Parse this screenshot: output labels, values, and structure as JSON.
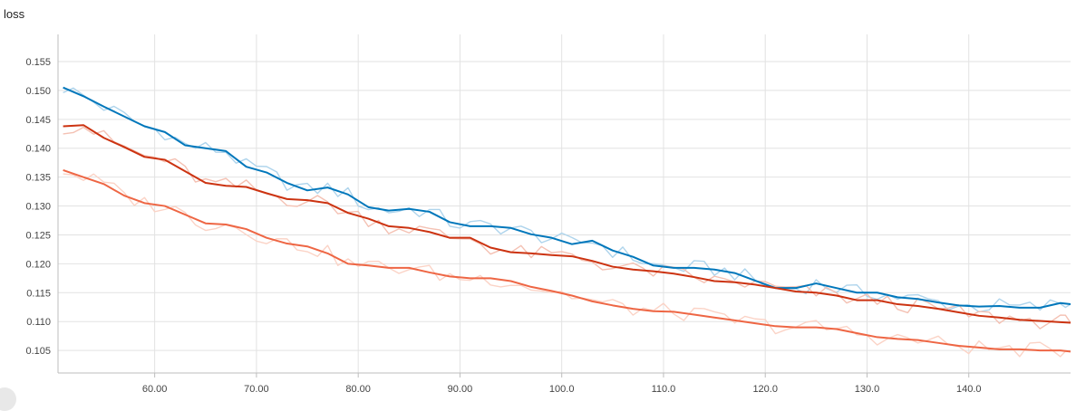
{
  "chart_data": {
    "type": "line",
    "title": "loss",
    "xlim": [
      50.5,
      150
    ],
    "ylim": [
      0.1011,
      0.1597
    ],
    "grid": true,
    "x_ticks": [
      60,
      70,
      80,
      90,
      100,
      110,
      120,
      130,
      140
    ],
    "x_tick_labels": [
      "60.00",
      "70.00",
      "80.00",
      "90.00",
      "100.0",
      "110.0",
      "120.0",
      "130.0",
      "140.0"
    ],
    "y_ticks": [
      0.105,
      0.11,
      0.115,
      0.12,
      0.125,
      0.13,
      0.135,
      0.14,
      0.145,
      0.15,
      0.155
    ],
    "y_tick_labels": [
      "0.105",
      "0.110",
      "0.115",
      "0.120",
      "0.125",
      "0.130",
      "0.135",
      "0.140",
      "0.145",
      "0.150",
      "0.155"
    ],
    "x": [
      51,
      53,
      55,
      57,
      59,
      61,
      63,
      65,
      67,
      69,
      71,
      73,
      75,
      77,
      79,
      81,
      83,
      85,
      87,
      89,
      91,
      93,
      95,
      97,
      99,
      101,
      103,
      105,
      107,
      109,
      111,
      113,
      115,
      117,
      119,
      121,
      123,
      125,
      127,
      129,
      131,
      133,
      135,
      137,
      139,
      141,
      143,
      145,
      147,
      149,
      150
    ],
    "series": [
      {
        "color": "#0077bb",
        "raw_color": "#aed4ec",
        "values": [
          0.1505,
          0.149,
          0.1472,
          0.1455,
          0.1438,
          0.1428,
          0.1405,
          0.14,
          0.1395,
          0.1368,
          0.1358,
          0.134,
          0.1327,
          0.1332,
          0.132,
          0.1298,
          0.1292,
          0.1295,
          0.129,
          0.1272,
          0.1265,
          0.1265,
          0.1262,
          0.1251,
          0.1245,
          0.1234,
          0.124,
          0.1223,
          0.1212,
          0.1197,
          0.1193,
          0.1193,
          0.119,
          0.1184,
          0.1171,
          0.1158,
          0.1158,
          0.1166,
          0.1158,
          0.115,
          0.115,
          0.1142,
          0.1139,
          0.1133,
          0.1128,
          0.1126,
          0.1127,
          0.1124,
          0.1124,
          0.1132,
          0.113
        ]
      },
      {
        "color": "#cc3311",
        "raw_color": "#f4c1b3",
        "values": [
          0.1438,
          0.144,
          0.1418,
          0.1402,
          0.1385,
          0.138,
          0.136,
          0.134,
          0.1335,
          0.1333,
          0.1322,
          0.1312,
          0.131,
          0.1305,
          0.1288,
          0.1278,
          0.1265,
          0.1262,
          0.1255,
          0.1245,
          0.1245,
          0.1228,
          0.122,
          0.1218,
          0.1215,
          0.1213,
          0.1205,
          0.1195,
          0.119,
          0.1187,
          0.1183,
          0.1177,
          0.117,
          0.1168,
          0.1164,
          0.1158,
          0.1152,
          0.115,
          0.1145,
          0.1137,
          0.1137,
          0.113,
          0.1127,
          0.1122,
          0.1116,
          0.111,
          0.1107,
          0.1103,
          0.1101,
          0.1099,
          0.1098
        ]
      },
      {
        "color": "#ee6644",
        "raw_color": "#fbd3c6",
        "values": [
          0.1362,
          0.135,
          0.1338,
          0.1318,
          0.1305,
          0.13,
          0.1285,
          0.127,
          0.1268,
          0.126,
          0.1245,
          0.1235,
          0.123,
          0.1218,
          0.12,
          0.1197,
          0.1193,
          0.1193,
          0.1185,
          0.1178,
          0.1175,
          0.1175,
          0.117,
          0.116,
          0.1153,
          0.1145,
          0.1135,
          0.1128,
          0.1122,
          0.1118,
          0.1117,
          0.1112,
          0.1107,
          0.1102,
          0.1097,
          0.1092,
          0.109,
          0.109,
          0.1087,
          0.108,
          0.1073,
          0.107,
          0.1068,
          0.1063,
          0.1058,
          0.1055,
          0.1052,
          0.1052,
          0.105,
          0.105,
          0.1048
        ]
      }
    ]
  }
}
